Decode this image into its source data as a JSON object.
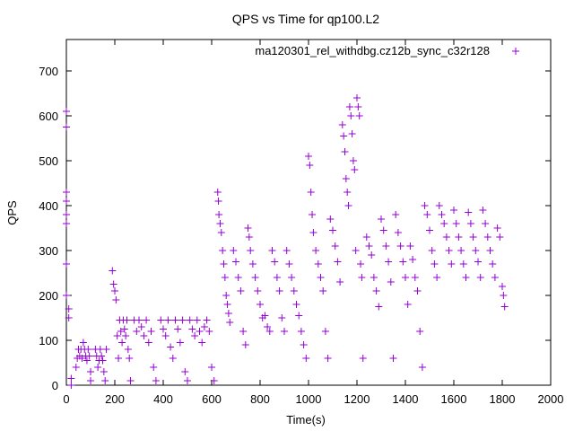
{
  "chart_data": {
    "type": "scatter",
    "title": "QPS vs Time for qp100.L2",
    "xlabel": "Time(s)",
    "ylabel": "QPS",
    "xlim": [
      0,
      2000
    ],
    "ylim": [
      0,
      770
    ],
    "xticks": [
      "0",
      "200",
      "400",
      "600",
      "800",
      "1000",
      "1200",
      "1400",
      "1600",
      "1800",
      "2000"
    ],
    "yticks": [
      "0",
      "100",
      "200",
      "300",
      "400",
      "500",
      "600",
      "700"
    ],
    "grid": false,
    "legend_position": "top-right",
    "series": [
      {
        "name": "ma120301_rel_withdbg.cz12b_sync_c32r128",
        "color": "#9400d3",
        "marker": "plus",
        "points": [
          [
            0,
            610
          ],
          [
            0,
            575
          ],
          [
            0,
            430
          ],
          [
            0,
            410
          ],
          [
            0,
            380
          ],
          [
            0,
            360
          ],
          [
            0,
            270
          ],
          [
            0,
            200
          ],
          [
            10,
            170
          ],
          [
            10,
            150
          ],
          [
            20,
            15
          ],
          [
            20,
            0
          ],
          [
            40,
            40
          ],
          [
            45,
            60
          ],
          [
            50,
            80
          ],
          [
            55,
            65
          ],
          [
            60,
            80
          ],
          [
            65,
            60
          ],
          [
            70,
            95
          ],
          [
            75,
            80
          ],
          [
            80,
            65
          ],
          [
            85,
            55
          ],
          [
            90,
            80
          ],
          [
            95,
            65
          ],
          [
            100,
            30
          ],
          [
            100,
            10
          ],
          [
            120,
            80
          ],
          [
            125,
            65
          ],
          [
            130,
            40
          ],
          [
            135,
            55
          ],
          [
            140,
            80
          ],
          [
            145,
            65
          ],
          [
            150,
            55
          ],
          [
            155,
            30
          ],
          [
            160,
            10
          ],
          [
            165,
            80
          ],
          [
            190,
            255
          ],
          [
            195,
            225
          ],
          [
            200,
            210
          ],
          [
            205,
            190
          ],
          [
            210,
            110
          ],
          [
            215,
            60
          ],
          [
            220,
            145
          ],
          [
            225,
            120
          ],
          [
            230,
            95
          ],
          [
            235,
            145
          ],
          [
            240,
            125
          ],
          [
            245,
            110
          ],
          [
            250,
            145
          ],
          [
            255,
            80
          ],
          [
            260,
            60
          ],
          [
            265,
            10
          ],
          [
            280,
            145
          ],
          [
            290,
            120
          ],
          [
            300,
            145
          ],
          [
            310,
            130
          ],
          [
            320,
            110
          ],
          [
            330,
            145
          ],
          [
            340,
            95
          ],
          [
            350,
            120
          ],
          [
            360,
            40
          ],
          [
            370,
            10
          ],
          [
            390,
            145
          ],
          [
            400,
            125
          ],
          [
            410,
            110
          ],
          [
            420,
            145
          ],
          [
            430,
            85
          ],
          [
            440,
            60
          ],
          [
            450,
            145
          ],
          [
            460,
            125
          ],
          [
            470,
            95
          ],
          [
            480,
            145
          ],
          [
            490,
            30
          ],
          [
            500,
            10
          ],
          [
            510,
            145
          ],
          [
            520,
            125
          ],
          [
            530,
            110
          ],
          [
            540,
            145
          ],
          [
            550,
            120
          ],
          [
            560,
            95
          ],
          [
            570,
            130
          ],
          [
            580,
            145
          ],
          [
            590,
            120
          ],
          [
            600,
            40
          ],
          [
            610,
            10
          ],
          [
            625,
            430
          ],
          [
            628,
            410
          ],
          [
            630,
            380
          ],
          [
            635,
            360
          ],
          [
            640,
            340
          ],
          [
            645,
            300
          ],
          [
            650,
            270
          ],
          [
            655,
            240
          ],
          [
            660,
            200
          ],
          [
            665,
            180
          ],
          [
            670,
            160
          ],
          [
            675,
            140
          ],
          [
            690,
            300
          ],
          [
            700,
            275
          ],
          [
            710,
            240
          ],
          [
            720,
            210
          ],
          [
            730,
            120
          ],
          [
            740,
            90
          ],
          [
            750,
            350
          ],
          [
            755,
            330
          ],
          [
            760,
            300
          ],
          [
            770,
            270
          ],
          [
            780,
            240
          ],
          [
            790,
            210
          ],
          [
            800,
            180
          ],
          [
            810,
            150
          ],
          [
            820,
            155
          ],
          [
            830,
            130
          ],
          [
            840,
            120
          ],
          [
            850,
            300
          ],
          [
            860,
            275
          ],
          [
            870,
            240
          ],
          [
            880,
            210
          ],
          [
            890,
            150
          ],
          [
            900,
            120
          ],
          [
            910,
            300
          ],
          [
            920,
            270
          ],
          [
            930,
            240
          ],
          [
            940,
            210
          ],
          [
            950,
            180
          ],
          [
            960,
            155
          ],
          [
            970,
            120
          ],
          [
            980,
            90
          ],
          [
            990,
            60
          ],
          [
            1000,
            510
          ],
          [
            1005,
            490
          ],
          [
            1010,
            430
          ],
          [
            1015,
            380
          ],
          [
            1020,
            340
          ],
          [
            1030,
            300
          ],
          [
            1040,
            270
          ],
          [
            1050,
            240
          ],
          [
            1060,
            210
          ],
          [
            1070,
            120
          ],
          [
            1080,
            60
          ],
          [
            1090,
            370
          ],
          [
            1100,
            345
          ],
          [
            1110,
            310
          ],
          [
            1120,
            275
          ],
          [
            1130,
            230
          ],
          [
            1140,
            580
          ],
          [
            1145,
            555
          ],
          [
            1150,
            520
          ],
          [
            1155,
            460
          ],
          [
            1160,
            430
          ],
          [
            1165,
            400
          ],
          [
            1170,
            620
          ],
          [
            1175,
            600
          ],
          [
            1180,
            560
          ],
          [
            1185,
            500
          ],
          [
            1190,
            480
          ],
          [
            1195,
            300
          ],
          [
            1200,
            640
          ],
          [
            1205,
            620
          ],
          [
            1210,
            600
          ],
          [
            1215,
            270
          ],
          [
            1220,
            240
          ],
          [
            1225,
            60
          ],
          [
            1240,
            330
          ],
          [
            1250,
            310
          ],
          [
            1260,
            290
          ],
          [
            1270,
            240
          ],
          [
            1280,
            210
          ],
          [
            1290,
            175
          ],
          [
            1300,
            370
          ],
          [
            1310,
            345
          ],
          [
            1320,
            310
          ],
          [
            1330,
            275
          ],
          [
            1340,
            230
          ],
          [
            1350,
            60
          ],
          [
            1360,
            380
          ],
          [
            1370,
            340
          ],
          [
            1380,
            310
          ],
          [
            1390,
            275
          ],
          [
            1400,
            240
          ],
          [
            1410,
            180
          ],
          [
            1420,
            310
          ],
          [
            1430,
            280
          ],
          [
            1440,
            240
          ],
          [
            1450,
            210
          ],
          [
            1460,
            120
          ],
          [
            1470,
            40
          ],
          [
            1480,
            400
          ],
          [
            1490,
            380
          ],
          [
            1500,
            345
          ],
          [
            1510,
            300
          ],
          [
            1520,
            270
          ],
          [
            1530,
            240
          ],
          [
            1540,
            400
          ],
          [
            1550,
            380
          ],
          [
            1560,
            360
          ],
          [
            1570,
            330
          ],
          [
            1580,
            300
          ],
          [
            1590,
            270
          ],
          [
            1600,
            390
          ],
          [
            1610,
            360
          ],
          [
            1620,
            330
          ],
          [
            1630,
            300
          ],
          [
            1640,
            270
          ],
          [
            1650,
            240
          ],
          [
            1660,
            385
          ],
          [
            1670,
            360
          ],
          [
            1680,
            330
          ],
          [
            1690,
            300
          ],
          [
            1700,
            275
          ],
          [
            1710,
            240
          ],
          [
            1720,
            390
          ],
          [
            1730,
            360
          ],
          [
            1740,
            330
          ],
          [
            1750,
            300
          ],
          [
            1760,
            270
          ],
          [
            1770,
            240
          ],
          [
            1780,
            350
          ],
          [
            1790,
            330
          ],
          [
            1800,
            220
          ],
          [
            1805,
            200
          ],
          [
            1810,
            175
          ]
        ]
      }
    ]
  }
}
